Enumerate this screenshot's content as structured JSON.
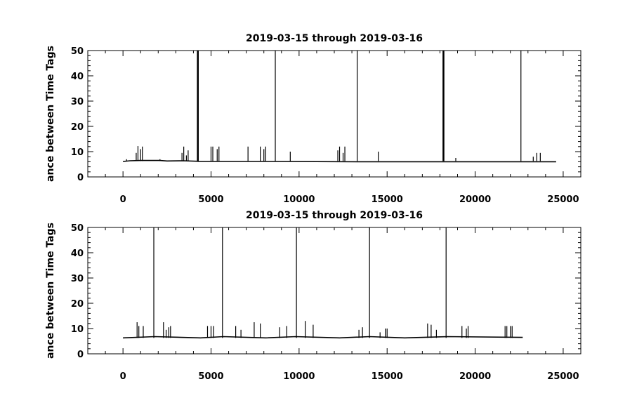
{
  "chart_data": [
    {
      "type": "line",
      "title": "2019-03-15 through 2019-03-16",
      "ylabel": "ance between Time Tags",
      "xlabel": "",
      "xlim": [
        -2000,
        26000
      ],
      "ylim": [
        0,
        50
      ],
      "x_ticks": [
        0,
        5000,
        10000,
        15000,
        20000,
        25000
      ],
      "y_ticks": [
        0,
        10,
        20,
        30,
        40,
        50
      ],
      "grid": false,
      "series": [
        {
          "baseline": [
            [
              0,
              6.1
            ],
            [
              400,
              6.4
            ],
            [
              1000,
              6.5
            ],
            [
              2100,
              6.5
            ],
            [
              2500,
              6.3
            ],
            [
              3400,
              6.4
            ],
            [
              4200,
              6.2
            ],
            [
              4300,
              6.1
            ],
            [
              8600,
              6.1
            ],
            [
              13300,
              6.0
            ],
            [
              24600,
              6.0
            ]
          ],
          "spikes": [
            {
              "x": 200,
              "y": 7
            },
            {
              "x": 750,
              "y": 9.5
            },
            {
              "x": 850,
              "y": 12.2
            },
            {
              "x": 1000,
              "y": 11
            },
            {
              "x": 1100,
              "y": 12
            },
            {
              "x": 2100,
              "y": 7
            },
            {
              "x": 3350,
              "y": 9.5
            },
            {
              "x": 3450,
              "y": 12
            },
            {
              "x": 3600,
              "y": 8.5
            },
            {
              "x": 3700,
              "y": 10.5
            },
            {
              "x": 4250,
              "y": 50,
              "bold": true
            },
            {
              "x": 5000,
              "y": 12
            },
            {
              "x": 5100,
              "y": 12
            },
            {
              "x": 5350,
              "y": 11
            },
            {
              "x": 5450,
              "y": 12
            },
            {
              "x": 7100,
              "y": 12
            },
            {
              "x": 7800,
              "y": 12
            },
            {
              "x": 8000,
              "y": 11
            },
            {
              "x": 8100,
              "y": 12
            },
            {
              "x": 8650,
              "y": 50
            },
            {
              "x": 9500,
              "y": 10
            },
            {
              "x": 12200,
              "y": 10.5
            },
            {
              "x": 12300,
              "y": 12
            },
            {
              "x": 12500,
              "y": 9.5
            },
            {
              "x": 12600,
              "y": 12
            },
            {
              "x": 13300,
              "y": 50
            },
            {
              "x": 14500,
              "y": 10
            },
            {
              "x": 18200,
              "y": 50,
              "bold": true
            },
            {
              "x": 18900,
              "y": 7.5
            },
            {
              "x": 22600,
              "y": 50
            },
            {
              "x": 23300,
              "y": 8
            },
            {
              "x": 23500,
              "y": 9.5
            },
            {
              "x": 23700,
              "y": 9.5
            }
          ]
        }
      ]
    },
    {
      "type": "line",
      "title": "2019-03-15 through 2019-03-16",
      "ylabel": "ance between Time Tags",
      "xlabel": "",
      "xlim": [
        -2000,
        26000
      ],
      "ylim": [
        0,
        50
      ],
      "x_ticks": [
        0,
        5000,
        10000,
        15000,
        20000,
        25000
      ],
      "y_ticks": [
        0,
        10,
        20,
        30,
        40,
        50
      ],
      "grid": false,
      "series": [
        {
          "baseline": [
            [
              0,
              6.3
            ],
            [
              1800,
              6.8
            ],
            [
              4400,
              6.3
            ],
            [
              5700,
              6.8
            ],
            [
              8100,
              6.3
            ],
            [
              9800,
              6.8
            ],
            [
              12300,
              6.3
            ],
            [
              14000,
              6.8
            ],
            [
              16000,
              6.3
            ],
            [
              18400,
              6.8
            ],
            [
              22700,
              6.5
            ]
          ],
          "spikes": [
            {
              "x": 800,
              "y": 12.5
            },
            {
              "x": 900,
              "y": 11
            },
            {
              "x": 1150,
              "y": 11
            },
            {
              "x": 1750,
              "y": 50
            },
            {
              "x": 2300,
              "y": 12.5
            },
            {
              "x": 2450,
              "y": 9.5
            },
            {
              "x": 2600,
              "y": 10.5
            },
            {
              "x": 2700,
              "y": 11
            },
            {
              "x": 4800,
              "y": 11
            },
            {
              "x": 5000,
              "y": 11
            },
            {
              "x": 5150,
              "y": 11
            },
            {
              "x": 5650,
              "y": 50
            },
            {
              "x": 6400,
              "y": 11
            },
            {
              "x": 6700,
              "y": 9.5
            },
            {
              "x": 7450,
              "y": 12.5
            },
            {
              "x": 7800,
              "y": 12
            },
            {
              "x": 8900,
              "y": 10.5
            },
            {
              "x": 9300,
              "y": 11
            },
            {
              "x": 9850,
              "y": 50
            },
            {
              "x": 10350,
              "y": 13
            },
            {
              "x": 10800,
              "y": 11.5
            },
            {
              "x": 13400,
              "y": 9.5
            },
            {
              "x": 13600,
              "y": 10.5
            },
            {
              "x": 14000,
              "y": 50
            },
            {
              "x": 14600,
              "y": 8.5
            },
            {
              "x": 14900,
              "y": 10
            },
            {
              "x": 15000,
              "y": 10
            },
            {
              "x": 17300,
              "y": 12
            },
            {
              "x": 17500,
              "y": 11.5
            },
            {
              "x": 17800,
              "y": 9.5
            },
            {
              "x": 18350,
              "y": 50
            },
            {
              "x": 19250,
              "y": 11
            },
            {
              "x": 19500,
              "y": 10
            },
            {
              "x": 19600,
              "y": 11
            },
            {
              "x": 21700,
              "y": 11
            },
            {
              "x": 21800,
              "y": 11
            },
            {
              "x": 22000,
              "y": 11
            },
            {
              "x": 22100,
              "y": 11
            }
          ]
        }
      ]
    }
  ]
}
